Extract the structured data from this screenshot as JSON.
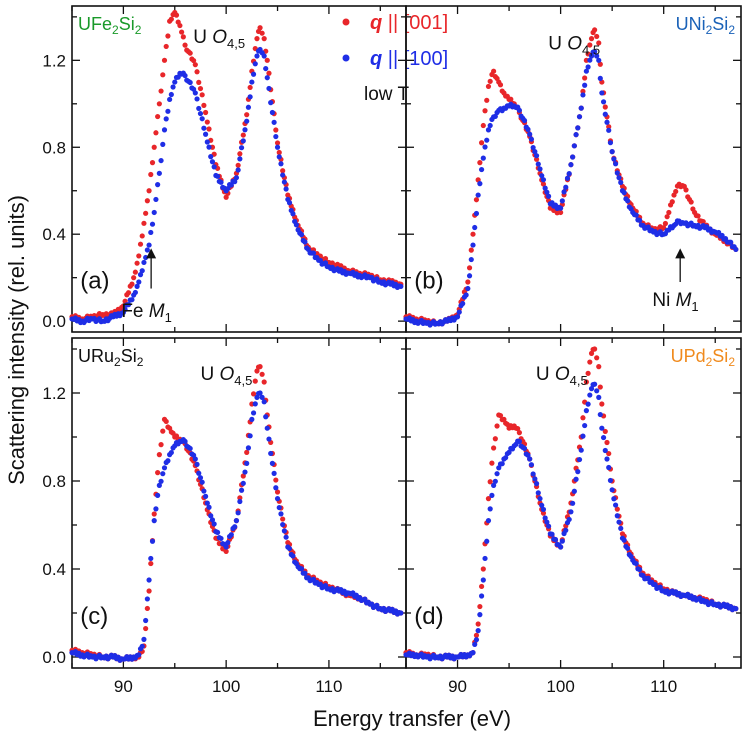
{
  "figure": {
    "xlabel": "Energy transfer (eV)",
    "ylabel": "Scattering intensity (rel. units)"
  },
  "legend": {
    "entries": [
      {
        "q": "q",
        "rest": " || [001]",
        "color": "#e8262a"
      },
      {
        "q": "q",
        "rest": " || [100]",
        "color": "#1f2ee6"
      }
    ],
    "note": "low T"
  },
  "colors": {
    "series_001": "#e8262a",
    "series_100": "#1f2ee6"
  },
  "chart_data": [
    {
      "panel": "a",
      "type": "scatter",
      "compound": {
        "base": "UFe",
        "sub1": "2",
        "mid": "Si",
        "sub2": "2",
        "color": "#1a9a2a"
      },
      "panel_label": "(a)",
      "peak_label": {
        "base": "U ",
        "italic": "O",
        "sub": "4,5"
      },
      "edge_label": {
        "base": "Fe ",
        "italic": "M",
        "sub": "1"
      },
      "xlim": [
        85,
        117.5
      ],
      "ylim": [
        -0.05,
        1.45
      ],
      "xticks": [
        90,
        100,
        110
      ],
      "yticks": [
        0.0,
        0.4,
        0.8,
        1.2
      ],
      "series": [
        {
          "name": "q || [001]",
          "x": [
            85,
            86,
            87,
            88,
            89,
            90,
            91,
            91.5,
            92,
            92.5,
            93,
            93.5,
            94,
            94.5,
            95,
            95.5,
            96,
            97,
            98,
            99,
            100,
            101,
            102,
            102.5,
            103,
            103.3,
            103.7,
            104,
            105,
            106,
            107,
            108,
            109,
            110,
            111,
            112,
            113,
            114,
            115,
            116,
            117
          ],
          "y": [
            0.02,
            0.01,
            0.02,
            0.03,
            0.03,
            0.07,
            0.2,
            0.3,
            0.45,
            0.6,
            0.8,
            1.0,
            1.2,
            1.38,
            1.42,
            1.36,
            1.27,
            1.18,
            0.96,
            0.72,
            0.57,
            0.68,
            0.95,
            1.15,
            1.3,
            1.35,
            1.3,
            1.2,
            0.82,
            0.58,
            0.44,
            0.34,
            0.3,
            0.27,
            0.25,
            0.23,
            0.22,
            0.21,
            0.19,
            0.18,
            0.17
          ]
        },
        {
          "name": "q || [100]",
          "x": [
            85,
            86,
            87,
            88,
            89,
            90,
            91,
            91.5,
            92,
            92.5,
            93,
            93.5,
            94,
            94.5,
            95,
            95.5,
            96,
            97,
            98,
            99,
            100,
            101,
            102,
            102.5,
            103,
            103.3,
            103.7,
            104,
            105,
            106,
            107,
            108,
            109,
            110,
            111,
            112,
            113,
            114,
            115,
            116,
            117
          ],
          "y": [
            0.01,
            0.0,
            0.01,
            0.0,
            0.02,
            0.04,
            0.12,
            0.18,
            0.27,
            0.35,
            0.5,
            0.68,
            0.88,
            1.02,
            1.1,
            1.14,
            1.13,
            1.05,
            0.86,
            0.67,
            0.6,
            0.66,
            0.92,
            1.1,
            1.22,
            1.25,
            1.22,
            1.12,
            0.8,
            0.56,
            0.42,
            0.33,
            0.28,
            0.25,
            0.23,
            0.22,
            0.21,
            0.2,
            0.18,
            0.17,
            0.16
          ]
        }
      ]
    },
    {
      "panel": "b",
      "type": "scatter",
      "compound": {
        "base": "UNi",
        "sub1": "2",
        "mid": "Si",
        "sub2": "2",
        "color": "#1a62b8"
      },
      "panel_label": "(b)",
      "peak_label": {
        "base": "U ",
        "italic": "O",
        "sub": "4,5"
      },
      "edge_label": {
        "base": "Ni ",
        "italic": "M",
        "sub": "1"
      },
      "xlim": [
        85,
        117.5
      ],
      "ylim": [
        -0.05,
        1.45
      ],
      "xticks": [
        90,
        100,
        110
      ],
      "yticks": [
        0.0,
        0.4,
        0.8,
        1.2
      ],
      "series": [
        {
          "name": "q || [001]",
          "x": [
            85,
            86,
            87,
            88,
            89,
            90,
            91,
            91.5,
            92,
            92.5,
            93,
            93.5,
            94,
            94.5,
            95,
            95.5,
            96,
            97,
            98,
            99,
            100,
            101,
            102,
            102.5,
            103,
            103.3,
            103.7,
            104,
            105,
            106,
            107,
            108,
            109,
            110,
            110.5,
            111,
            111.5,
            112,
            113,
            114,
            115,
            116,
            117
          ],
          "y": [
            0.02,
            0.01,
            0.0,
            -0.01,
            0.0,
            0.03,
            0.18,
            0.4,
            0.65,
            0.9,
            1.08,
            1.15,
            1.1,
            1.05,
            1.02,
            1.0,
            0.96,
            0.85,
            0.68,
            0.52,
            0.5,
            0.72,
            0.98,
            1.2,
            1.3,
            1.34,
            1.28,
            1.1,
            0.78,
            0.62,
            0.52,
            0.45,
            0.42,
            0.43,
            0.5,
            0.58,
            0.63,
            0.62,
            0.5,
            0.44,
            0.4,
            0.37,
            0.33
          ]
        },
        {
          "name": "q || [100]",
          "x": [
            85,
            86,
            87,
            88,
            89,
            90,
            91,
            91.5,
            92,
            92.5,
            93,
            93.5,
            94,
            94.5,
            95,
            95.5,
            96,
            97,
            98,
            99,
            100,
            101,
            102,
            102.5,
            103,
            103.3,
            103.7,
            104,
            105,
            106,
            107,
            108,
            109,
            110,
            110.5,
            111,
            111.5,
            112,
            113,
            114,
            115,
            116,
            117
          ],
          "y": [
            0.01,
            0.0,
            -0.01,
            -0.01,
            0.0,
            0.02,
            0.15,
            0.35,
            0.58,
            0.75,
            0.88,
            0.94,
            0.97,
            0.98,
            0.99,
            0.99,
            0.97,
            0.86,
            0.7,
            0.54,
            0.52,
            0.72,
            0.98,
            1.15,
            1.22,
            1.24,
            1.2,
            1.05,
            0.78,
            0.6,
            0.5,
            0.44,
            0.41,
            0.4,
            0.42,
            0.44,
            0.46,
            0.45,
            0.44,
            0.43,
            0.41,
            0.38,
            0.33
          ]
        }
      ]
    },
    {
      "panel": "c",
      "type": "scatter",
      "compound": {
        "base": "URu",
        "sub1": "2",
        "mid": "Si",
        "sub2": "2",
        "color": "#111111"
      },
      "panel_label": "(c)",
      "peak_label": {
        "base": "U ",
        "italic": "O",
        "sub": "4,5"
      },
      "xlim": [
        85,
        117.5
      ],
      "ylim": [
        -0.05,
        1.45
      ],
      "xticks": [
        90,
        100,
        110
      ],
      "yticks": [
        0.0,
        0.4,
        0.8,
        1.2
      ],
      "series": [
        {
          "name": "q || [001]",
          "x": [
            85,
            86,
            87,
            88,
            89,
            90,
            91,
            91.5,
            92,
            92.5,
            93,
            93.5,
            94,
            94.5,
            95,
            95.5,
            96,
            97,
            98,
            99,
            100,
            101,
            102,
            102.5,
            103,
            103.3,
            103.7,
            104,
            105,
            106,
            107,
            108,
            109,
            110,
            111,
            112,
            113,
            114,
            115,
            116,
            117
          ],
          "y": [
            0.03,
            0.02,
            0.01,
            0.0,
            0.0,
            -0.01,
            0.0,
            0.0,
            0.05,
            0.3,
            0.65,
            0.92,
            1.08,
            1.04,
            1.0,
            0.99,
            0.97,
            0.87,
            0.7,
            0.54,
            0.48,
            0.62,
            0.93,
            1.15,
            1.3,
            1.32,
            1.25,
            1.1,
            0.75,
            0.52,
            0.42,
            0.37,
            0.34,
            0.32,
            0.3,
            0.28,
            0.27,
            0.24,
            0.22,
            0.21,
            0.2
          ]
        },
        {
          "name": "q || [100]",
          "x": [
            85,
            86,
            87,
            88,
            89,
            90,
            91,
            91.5,
            92,
            92.5,
            93,
            93.5,
            94,
            94.5,
            95,
            95.5,
            96,
            97,
            98,
            99,
            100,
            101,
            102,
            102.5,
            103,
            103.3,
            103.7,
            104,
            105,
            106,
            107,
            108,
            109,
            110,
            111,
            112,
            113,
            114,
            115,
            116,
            117
          ],
          "y": [
            0.02,
            0.01,
            0.0,
            0.0,
            0.0,
            -0.01,
            0.0,
            0.01,
            0.08,
            0.35,
            0.62,
            0.78,
            0.86,
            0.92,
            0.96,
            0.98,
            0.98,
            0.9,
            0.73,
            0.57,
            0.5,
            0.62,
            0.88,
            1.08,
            1.18,
            1.2,
            1.16,
            1.04,
            0.72,
            0.5,
            0.41,
            0.36,
            0.33,
            0.31,
            0.3,
            0.29,
            0.27,
            0.24,
            0.22,
            0.21,
            0.2
          ]
        }
      ]
    },
    {
      "panel": "d",
      "type": "scatter",
      "compound": {
        "base": "UPd",
        "sub1": "2",
        "mid": "Si",
        "sub2": "2",
        "color": "#f08a1c"
      },
      "panel_label": "(d)",
      "peak_label": {
        "base": "U ",
        "italic": "O",
        "sub": "4,5"
      },
      "xlim": [
        85,
        117.5
      ],
      "ylim": [
        -0.05,
        1.45
      ],
      "xticks": [
        90,
        100,
        110
      ],
      "yticks": [
        0.0,
        0.4,
        0.8,
        1.2
      ],
      "series": [
        {
          "name": "q || [001]",
          "x": [
            85,
            86,
            87,
            88,
            89,
            90,
            91,
            91.5,
            92,
            92.5,
            93,
            93.5,
            94,
            94.5,
            95,
            95.5,
            96,
            97,
            98,
            99,
            100,
            101,
            102,
            102.5,
            103,
            103.3,
            103.7,
            104,
            105,
            106,
            107,
            108,
            109,
            110,
            111,
            112,
            113,
            114,
            115,
            116,
            117
          ],
          "y": [
            0.02,
            0.01,
            0.01,
            0.0,
            0.0,
            0.0,
            0.01,
            0.02,
            0.15,
            0.4,
            0.72,
            0.95,
            1.1,
            1.08,
            1.04,
            1.05,
            1.02,
            0.9,
            0.7,
            0.55,
            0.5,
            0.7,
            1.0,
            1.25,
            1.38,
            1.4,
            1.32,
            1.15,
            0.8,
            0.56,
            0.45,
            0.38,
            0.34,
            0.31,
            0.29,
            0.28,
            0.27,
            0.26,
            0.24,
            0.23,
            0.22
          ]
        },
        {
          "name": "q || [100]",
          "x": [
            85,
            86,
            87,
            88,
            89,
            90,
            91,
            91.5,
            92,
            92.5,
            93,
            93.5,
            94,
            94.5,
            95,
            95.5,
            96,
            97,
            98,
            99,
            100,
            101,
            102,
            102.5,
            103,
            103.3,
            103.7,
            104,
            105,
            106,
            107,
            108,
            109,
            110,
            111,
            112,
            113,
            114,
            115,
            116,
            117
          ],
          "y": [
            0.01,
            0.01,
            0.0,
            0.0,
            0.0,
            0.0,
            0.01,
            0.02,
            0.12,
            0.35,
            0.62,
            0.78,
            0.86,
            0.9,
            0.93,
            0.96,
            0.98,
            0.9,
            0.72,
            0.56,
            0.5,
            0.66,
            0.94,
            1.12,
            1.22,
            1.24,
            1.18,
            1.04,
            0.76,
            0.54,
            0.44,
            0.37,
            0.33,
            0.3,
            0.29,
            0.28,
            0.27,
            0.25,
            0.24,
            0.23,
            0.22
          ]
        }
      ]
    }
  ]
}
